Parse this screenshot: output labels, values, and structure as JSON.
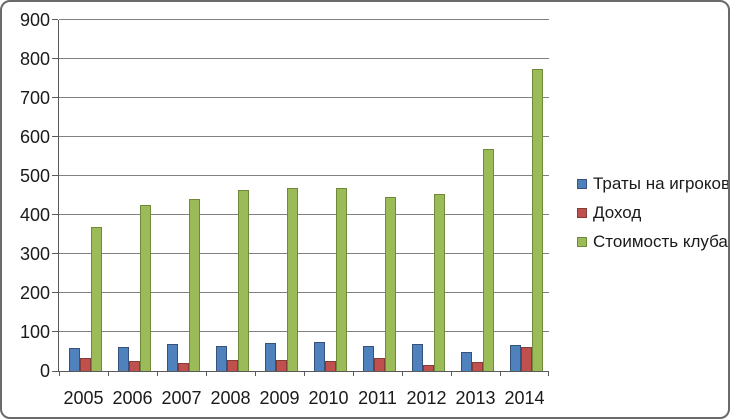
{
  "chart_data": {
    "type": "bar",
    "title": "",
    "xlabel": "",
    "ylabel": "",
    "categories": [
      "2005",
      "2006",
      "2007",
      "2008",
      "2009",
      "2010",
      "2011",
      "2012",
      "2013",
      "2014"
    ],
    "series": [
      {
        "name": "Траты на игроков",
        "color": "#4F81BD",
        "border_color": "#36527A",
        "values": [
          60,
          62,
          70,
          65,
          72,
          74,
          65,
          68,
          50,
          66
        ]
      },
      {
        "name": "Доход",
        "color": "#C0504D",
        "border_color": "#843C39",
        "values": [
          33,
          25,
          20,
          27,
          29,
          26,
          33,
          16,
          24,
          62
        ]
      },
      {
        "name": "Стоимость клуба",
        "color": "#9BBB59",
        "border_color": "#6F8A3B",
        "values": [
          370,
          425,
          440,
          465,
          470,
          470,
          445,
          455,
          570,
          775
        ]
      }
    ],
    "ylim": [
      0,
      900
    ],
    "ytick_step": 100,
    "ytick_labels": [
      "0",
      "100",
      "200",
      "300",
      "400",
      "500",
      "600",
      "700",
      "800",
      "900"
    ],
    "grid": true,
    "legend_position": "right"
  },
  "colors": {
    "background": "#FFFFFF",
    "gridline": "#808080",
    "axis": "#595959",
    "text": "#1A1A1A",
    "frame_border": "#6A6A6A"
  }
}
